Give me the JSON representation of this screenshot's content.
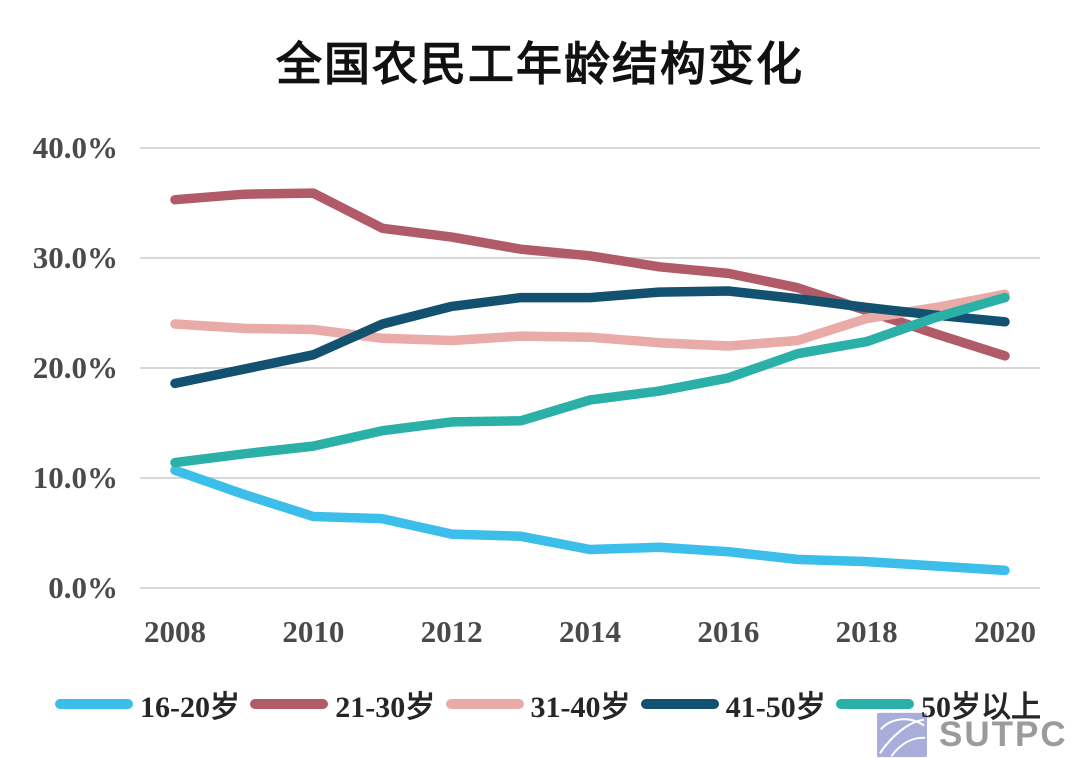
{
  "title": "全国农民工年龄结构变化",
  "chart_data": {
    "type": "line",
    "title": "全国农民工年龄结构变化",
    "x": [
      2008,
      2009,
      2010,
      2011,
      2012,
      2013,
      2014,
      2015,
      2016,
      2017,
      2018,
      2019,
      2020
    ],
    "x_tick_labels": [
      "2008",
      "2010",
      "2012",
      "2014",
      "2016",
      "2018",
      "2020"
    ],
    "y_ticks": [
      {
        "value": 0,
        "label": "0.0%"
      },
      {
        "value": 10,
        "label": "10.0%"
      },
      {
        "value": 20,
        "label": "20.0%"
      },
      {
        "value": 30,
        "label": "30.0%"
      },
      {
        "value": 40,
        "label": "40.0%"
      }
    ],
    "ylim": [
      0,
      40
    ],
    "unit": "%",
    "grid": true,
    "legend_position": "bottom",
    "gridline_color": "#d8d8d8",
    "series": [
      {
        "name": "16-20岁",
        "color": "#3bbee9",
        "values": [
          10.7,
          8.5,
          6.5,
          6.3,
          4.9,
          4.7,
          3.5,
          3.7,
          3.3,
          2.6,
          2.4,
          2.0,
          1.6
        ]
      },
      {
        "name": "21-30岁",
        "color": "#b25b68",
        "values": [
          35.3,
          35.8,
          35.9,
          32.7,
          31.9,
          30.8,
          30.2,
          29.2,
          28.6,
          27.3,
          25.2,
          23.1,
          21.1
        ]
      },
      {
        "name": "31-40岁",
        "color": "#e9aba7",
        "values": [
          24.0,
          23.6,
          23.5,
          22.7,
          22.5,
          22.9,
          22.8,
          22.3,
          22.0,
          22.5,
          24.5,
          25.5,
          26.7
        ]
      },
      {
        "name": "41-50岁",
        "color": "#12516f",
        "values": [
          18.6,
          19.9,
          21.2,
          24.0,
          25.6,
          26.4,
          26.4,
          26.9,
          27.0,
          26.3,
          25.5,
          24.8,
          24.2
        ]
      },
      {
        "name": "50岁以上",
        "color": "#2bb0a7",
        "values": [
          11.4,
          12.2,
          12.9,
          14.3,
          15.1,
          15.2,
          17.1,
          17.9,
          19.1,
          21.3,
          22.4,
          24.6,
          26.4
        ]
      }
    ]
  },
  "logo": {
    "text": "SUTPC",
    "icon": "sutpc-swoosh-icon",
    "icon_color": "#a8add9",
    "text_color": "#9b9b9b"
  }
}
